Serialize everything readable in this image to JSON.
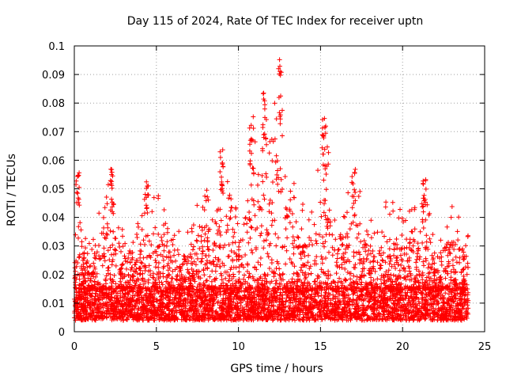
{
  "chart_data": {
    "type": "scatter",
    "title": "Day 115 of 2024, Rate Of TEC Index for receiver uptn",
    "xlabel": "GPS time / hours",
    "ylabel": "ROTI / TECUs",
    "xlim": [
      0,
      25
    ],
    "ylim": [
      0,
      0.1
    ],
    "xticks": [
      0,
      5,
      10,
      15,
      20,
      25
    ],
    "xtick_labels": [
      "0",
      "5",
      "10",
      "15",
      "20",
      "25"
    ],
    "yticks": [
      0,
      0.01,
      0.02,
      0.03,
      0.04,
      0.05,
      0.06,
      0.07,
      0.08,
      0.09,
      0.1
    ],
    "ytick_labels": [
      "0",
      "0.01",
      "0.02",
      "0.03",
      "0.04",
      "0.05",
      "0.06",
      "0.07",
      "0.08",
      "0.09",
      "0.1"
    ],
    "grid": true,
    "marker": "+",
    "series": [
      {
        "name": "uptn",
        "color": "#ff0000",
        "x_range": [
          0,
          24
        ],
        "baseline_band": [
          0.004,
          0.015
        ],
        "envelope": [
          {
            "x": 0.0,
            "y": 0.03
          },
          {
            "x": 0.3,
            "y": 0.058
          },
          {
            "x": 0.5,
            "y": 0.038
          },
          {
            "x": 1.0,
            "y": 0.03
          },
          {
            "x": 1.7,
            "y": 0.046
          },
          {
            "x": 2.3,
            "y": 0.057
          },
          {
            "x": 3.0,
            "y": 0.036
          },
          {
            "x": 4.0,
            "y": 0.04
          },
          {
            "x": 4.4,
            "y": 0.054
          },
          {
            "x": 5.2,
            "y": 0.047
          },
          {
            "x": 6.0,
            "y": 0.036
          },
          {
            "x": 7.0,
            "y": 0.035
          },
          {
            "x": 7.7,
            "y": 0.05
          },
          {
            "x": 8.5,
            "y": 0.05
          },
          {
            "x": 9.0,
            "y": 0.064
          },
          {
            "x": 9.5,
            "y": 0.055
          },
          {
            "x": 10.0,
            "y": 0.04
          },
          {
            "x": 10.8,
            "y": 0.075
          },
          {
            "x": 11.5,
            "y": 0.084
          },
          {
            "x": 12.5,
            "y": 0.097
          },
          {
            "x": 13.0,
            "y": 0.06
          },
          {
            "x": 14.0,
            "y": 0.045
          },
          {
            "x": 15.2,
            "y": 0.075
          },
          {
            "x": 16.0,
            "y": 0.042
          },
          {
            "x": 17.0,
            "y": 0.056
          },
          {
            "x": 18.0,
            "y": 0.045
          },
          {
            "x": 19.0,
            "y": 0.046
          },
          {
            "x": 20.0,
            "y": 0.045
          },
          {
            "x": 20.5,
            "y": 0.042
          },
          {
            "x": 21.3,
            "y": 0.054
          },
          {
            "x": 22.0,
            "y": 0.035
          },
          {
            "x": 23.0,
            "y": 0.044
          },
          {
            "x": 24.0,
            "y": 0.036
          }
        ],
        "peaks": [
          {
            "x": 0.2,
            "y": 0.058
          },
          {
            "x": 2.3,
            "y": 0.057
          },
          {
            "x": 4.4,
            "y": 0.054
          },
          {
            "x": 9.0,
            "y": 0.064
          },
          {
            "x": 10.8,
            "y": 0.076
          },
          {
            "x": 11.6,
            "y": 0.084
          },
          {
            "x": 12.55,
            "y": 0.097
          },
          {
            "x": 15.2,
            "y": 0.075
          },
          {
            "x": 17.0,
            "y": 0.057
          },
          {
            "x": 21.3,
            "y": 0.054
          }
        ]
      }
    ]
  }
}
